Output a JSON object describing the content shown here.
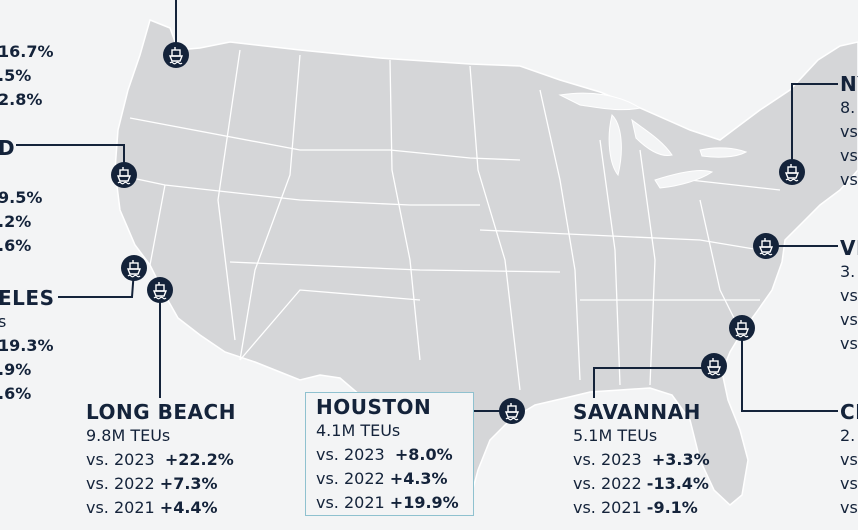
{
  "colors": {
    "land": "#d5d6d8",
    "border": "#ffffff",
    "water": "#f3f4f5",
    "ink": "#14233a",
    "highlight": "#8fc1cf"
  },
  "marker_icon": "ship-icon",
  "ports": {
    "seattle": {
      "changes": [
        "16.7%",
        ".5%",
        "2.8%"
      ]
    },
    "oakland": {
      "name_fragment": "D",
      "changes": [
        "9.5%",
        ".2%",
        ".6%"
      ]
    },
    "los_angeles": {
      "name_fragment": "ELES",
      "teu_fragment": "s",
      "changes": [
        "19.3%",
        ".9%",
        ".6%"
      ]
    },
    "long_beach": {
      "name": "LONG BEACH",
      "teus": "9.8M TEUs",
      "rows": [
        {
          "label": "vs. 2023",
          "change": "+22.2%"
        },
        {
          "label": "vs. 2022",
          "change": "+7.3%"
        },
        {
          "label": "vs. 2021",
          "change": "+4.4%"
        }
      ]
    },
    "houston": {
      "name": "HOUSTON",
      "teus": "4.1M TEUs",
      "rows": [
        {
          "label": "vs. 2023",
          "change": "+8.0%"
        },
        {
          "label": "vs. 2022",
          "change": "+4.3%"
        },
        {
          "label": "vs. 2021",
          "change": "+19.9%"
        }
      ]
    },
    "savannah": {
      "name": "SAVANNAH",
      "teus": "5.1M TEUs",
      "rows": [
        {
          "label": "vs. 2023",
          "change": "+3.3%"
        },
        {
          "label": "vs. 2022",
          "change": "-13.4%"
        },
        {
          "label": "vs. 2021",
          "change": "-9.1%"
        }
      ]
    },
    "ny_nj": {
      "name_fragment": "NY",
      "teu_fragment": "8.",
      "rows": [
        "vs",
        "vs",
        "vs"
      ]
    },
    "virginia": {
      "name_fragment": "VI",
      "teu_fragment": "3.",
      "rows": [
        "vs",
        "vs",
        "vs"
      ]
    },
    "charleston": {
      "name_fragment": "CH",
      "teu_fragment": "2.",
      "rows": [
        "vs",
        "vs",
        "vs"
      ]
    }
  }
}
